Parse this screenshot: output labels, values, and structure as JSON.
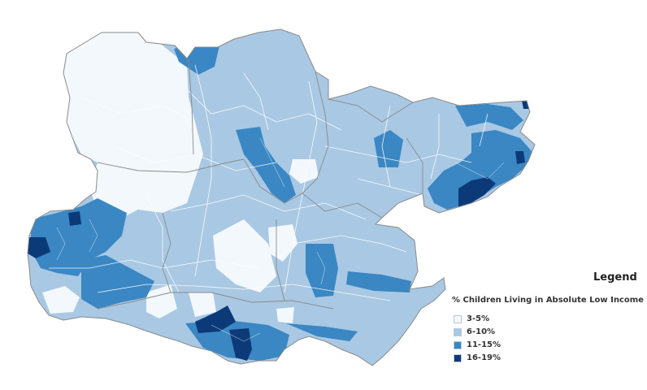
{
  "map": {
    "fill_colors": {
      "outside": "#ffffff",
      "border": "#8a8a8a",
      "ward_line": "#ffffff"
    }
  },
  "legend": {
    "title": "Legend",
    "subtitle": "% Children Living in Absolute Low Income",
    "items": [
      {
        "label": "3-5%",
        "color": "#f3f8fd"
      },
      {
        "label": "6-10%",
        "color": "#a9c8e3"
      },
      {
        "label": "11-15%",
        "color": "#3a87c4"
      },
      {
        "label": "16-19%",
        "color": "#0c3a78"
      }
    ]
  }
}
